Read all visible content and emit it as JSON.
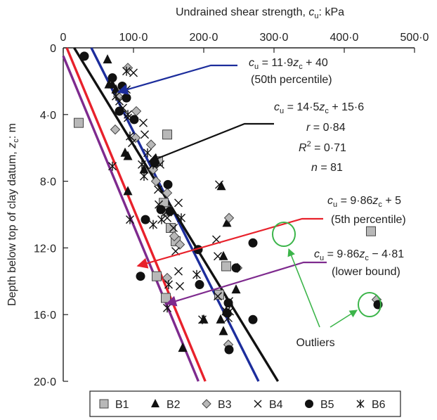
{
  "chart_data": {
    "type": "scatter",
    "title": "",
    "xlabel": "Undrained shear strength, c_u: kPa",
    "xlabel_parts": {
      "main": "Undrained shear strength, ",
      "sym": "c",
      "sub": "u",
      "tail": ": kPa"
    },
    "ylabel": "Depth below top of clay datum, z_c: m",
    "ylabel_parts": {
      "main": "Depth below top of clay datum, ",
      "sym": "z",
      "sub": "c",
      "tail": ": m"
    },
    "x_axis_position": "top",
    "xlim": [
      0,
      500
    ],
    "ylim": [
      0,
      20
    ],
    "y_inverted": true,
    "x_ticks": [
      0,
      100,
      200,
      300,
      400,
      500
    ],
    "x_tick_labels": [
      "0",
      "100·0",
      "200·0",
      "300·0",
      "400·0",
      "500·0"
    ],
    "y_ticks": [
      0,
      4,
      8,
      12,
      16,
      20
    ],
    "y_tick_labels": [
      "0",
      "4·0",
      "8·0",
      "12·0",
      "16·0",
      "20·0"
    ],
    "grid": false,
    "legend_position": "bottom",
    "series": [
      {
        "name": "B1",
        "marker": "square",
        "color": "#b8b8b8",
        "points": [
          [
            22,
            4.5
          ],
          [
            148,
            5.2
          ],
          [
            135,
            6.8
          ],
          [
            143,
            9.3
          ],
          [
            148,
            9.8
          ],
          [
            153,
            10.8
          ],
          [
            160,
            11.6
          ],
          [
            232,
            13.1
          ],
          [
            133,
            13.7
          ],
          [
            146,
            15.0
          ],
          [
            222,
            14.8
          ],
          [
            438,
            11.0
          ]
        ]
      },
      {
        "name": "B2",
        "marker": "triangle",
        "color": "#111111",
        "points": [
          [
            63,
            0.7
          ],
          [
            65,
            2.2
          ],
          [
            70,
            2.2
          ],
          [
            75,
            2.5
          ],
          [
            88,
            6.3
          ],
          [
            92,
            6.5
          ],
          [
            115,
            7.3
          ],
          [
            92,
            8.6
          ],
          [
            225,
            8.3
          ],
          [
            233,
            10.5
          ],
          [
            228,
            12.5
          ],
          [
            246,
            14.5
          ],
          [
            232,
            15.8
          ],
          [
            224,
            16.3
          ],
          [
            200,
            16.3
          ],
          [
            228,
            17.0
          ],
          [
            170,
            18.0
          ]
        ]
      },
      {
        "name": "B3",
        "marker": "diamond",
        "color": "#b8b8b8",
        "points": [
          [
            92,
            1.2
          ],
          [
            78,
            2.9
          ],
          [
            104,
            3.8
          ],
          [
            74,
            4.9
          ],
          [
            103,
            5.4
          ],
          [
            125,
            5.8
          ],
          [
            128,
            7.3
          ],
          [
            132,
            8.0
          ],
          [
            148,
            8.7
          ],
          [
            158,
            11.3
          ],
          [
            166,
            11.8
          ],
          [
            236,
            10.2
          ],
          [
            248,
            13.2
          ],
          [
            148,
            13.8
          ],
          [
            235,
            17.8
          ],
          [
            446,
            15.1
          ]
        ]
      },
      {
        "name": "B4",
        "marker": "x",
        "color": "#111111",
        "points": [
          [
            100,
            1.5
          ],
          [
            90,
            2.5
          ],
          [
            80,
            3.2
          ],
          [
            85,
            3.6
          ],
          [
            92,
            4.2
          ],
          [
            114,
            4.5
          ],
          [
            98,
            5.7
          ],
          [
            116,
            5.2
          ],
          [
            138,
            7.0
          ],
          [
            135,
            8.5
          ],
          [
            136,
            9.4
          ],
          [
            148,
            9.8
          ],
          [
            164,
            9.3
          ],
          [
            157,
            10.8
          ],
          [
            220,
            12.5
          ],
          [
            160,
            12.2
          ],
          [
            164,
            13.4
          ],
          [
            166,
            14.3
          ],
          [
            218,
            11.5
          ],
          [
            220,
            14.9
          ],
          [
            236,
            15.2
          ],
          [
            237,
            15.8
          ],
          [
            222,
            8.2
          ],
          [
            148,
            10.2
          ]
        ]
      },
      {
        "name": "B5",
        "marker": "circle",
        "color": "#111111",
        "points": [
          [
            30,
            0.5
          ],
          [
            70,
            1.8
          ],
          [
            84,
            2.3
          ],
          [
            90,
            3.0
          ],
          [
            80,
            3.8
          ],
          [
            101,
            4.3
          ],
          [
            130,
            6.9
          ],
          [
            149,
            8.2
          ],
          [
            139,
            9.7
          ],
          [
            152,
            9.8
          ],
          [
            117,
            10.3
          ],
          [
            192,
            12.1
          ],
          [
            270,
            11.7
          ],
          [
            246,
            13.2
          ],
          [
            110,
            13.7
          ],
          [
            194,
            14.2
          ],
          [
            235,
            15.3
          ],
          [
            233,
            15.9
          ],
          [
            270,
            16.3
          ],
          [
            236,
            18.1
          ],
          [
            448,
            15.4
          ]
        ]
      },
      {
        "name": "B6",
        "marker": "asterisk",
        "color": "#111111",
        "points": [
          [
            90,
            1.4
          ],
          [
            75,
            2.9
          ],
          [
            92,
            4.0
          ],
          [
            95,
            5.3
          ],
          [
            120,
            6.3
          ],
          [
            128,
            7.0
          ],
          [
            112,
            7.0
          ],
          [
            70,
            7.1
          ],
          [
            115,
            7.7
          ],
          [
            95,
            10.3
          ],
          [
            128,
            10.6
          ],
          [
            140,
            10.3
          ],
          [
            168,
            10.2
          ],
          [
            190,
            13.6
          ],
          [
            150,
            14.2
          ],
          [
            148,
            15.6
          ],
          [
            198,
            16.3
          ],
          [
            232,
            15.8
          ],
          [
            235,
            16.2
          ]
        ]
      }
    ],
    "fit_lines": [
      {
        "equation": "c_u = 11·9z_c + 40",
        "slope": 11.9,
        "intercept": 40,
        "color": "#1c2d9c",
        "label_lines": [
          "c_u = 11·9z_c + 40",
          "(50th percentile)"
        ]
      },
      {
        "equation": "c_u = 14·5z_c + 15·6",
        "slope": 14.5,
        "intercept": 15.6,
        "color": "#111111",
        "label_lines": [
          "c_u = 14·5z_c + 15·6",
          "r = 0·84",
          "R² = 0·71",
          "n = 81"
        ]
      },
      {
        "equation": "c_u = 9·86z_c + 5",
        "slope": 9.86,
        "intercept": 5,
        "color": "#e8212b",
        "label_lines": [
          "c_u = 9·86z_c + 5",
          "(5th percentile)"
        ]
      },
      {
        "equation": "c_u = 9·86z_c − 4·81",
        "slope": 9.86,
        "intercept": -4.81,
        "color": "#7e2a8e",
        "label_lines": [
          "c_u = 9·86z_c − 4·81",
          "(lower bound)"
        ]
      }
    ],
    "annotations": [
      {
        "text": "Outliers",
        "color": "#3cb54a"
      }
    ]
  },
  "annotation_text": {
    "line1": {
      "pre": "c",
      "sub": "u",
      "post": " = 11·9",
      "z": "z",
      "zsub": "c",
      "tail": " + 40",
      "second": "(50th percentile)"
    },
    "line2": {
      "pre": "c",
      "sub": "u",
      "post": " = 14·5",
      "z": "z",
      "zsub": "c",
      "tail": " + 15·6",
      "r": "r",
      "rval": " = 0·84",
      "R": "R",
      "sup": "2",
      "Rval": " = 0·71",
      "n": "n",
      "nval": " = 81"
    },
    "line3": {
      "pre": "c",
      "sub": "u",
      "post": " = 9·86",
      "z": "z",
      "zsub": "c",
      "tail": " + 5",
      "second": "(5th percentile)"
    },
    "line4": {
      "pre": "c",
      "sub": "u",
      "post": " = 9·86",
      "z": "z",
      "zsub": "c",
      "tail": " − 4·81",
      "second": "(lower bound)"
    },
    "outliers": "Outliers"
  }
}
